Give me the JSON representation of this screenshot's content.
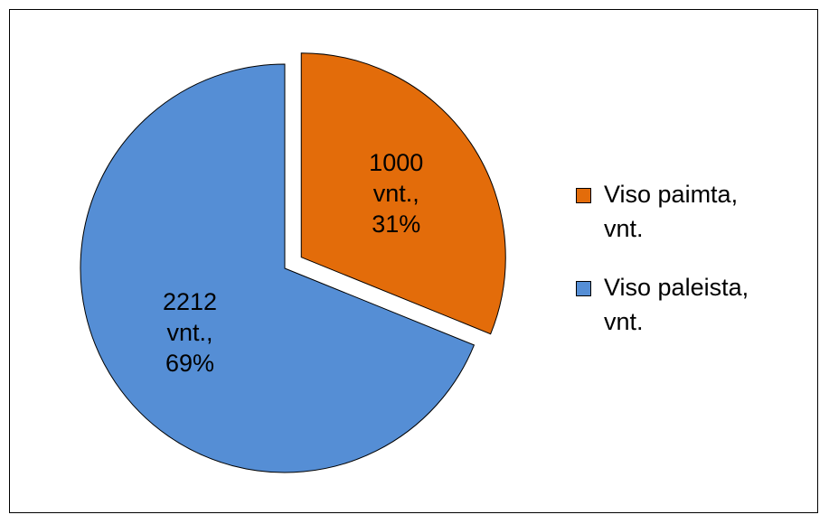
{
  "chart_data": {
    "type": "pie",
    "categories": [
      "Viso paimta, vnt.",
      "Viso paleista, vnt."
    ],
    "values": [
      1000,
      2212
    ],
    "value_labels": [
      "1000 vnt., 31%",
      "2212 vnt., 69%"
    ],
    "colors": [
      "#e36c0a",
      "#558ed5"
    ],
    "explode": [
      true,
      false
    ],
    "legend": "right"
  }
}
